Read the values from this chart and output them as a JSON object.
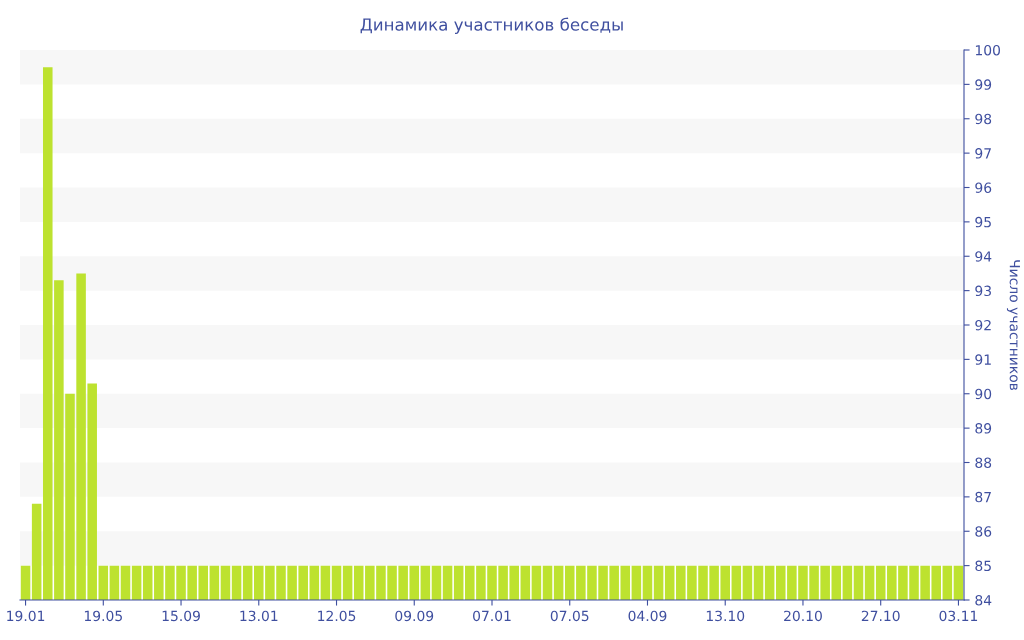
{
  "chart_data": {
    "type": "bar",
    "title": "Динамика участников беседы",
    "ylabel": "Число участников",
    "categories": [
      "19.01",
      null,
      null,
      null,
      null,
      null,
      null,
      "19.05",
      null,
      null,
      null,
      null,
      null,
      null,
      "15.09",
      null,
      null,
      null,
      null,
      null,
      null,
      "13.01",
      null,
      null,
      null,
      null,
      null,
      null,
      "12.05",
      null,
      null,
      null,
      null,
      null,
      null,
      "09.09",
      null,
      null,
      null,
      null,
      null,
      null,
      "07.01",
      null,
      null,
      null,
      null,
      null,
      null,
      "07.05",
      null,
      null,
      null,
      null,
      null,
      null,
      "04.09",
      null,
      null,
      null,
      null,
      null,
      null,
      "13.10",
      null,
      null,
      null,
      null,
      null,
      null,
      "20.10",
      null,
      null,
      null,
      null,
      null,
      null,
      "27.10",
      null,
      null,
      null,
      null,
      null,
      null,
      "03.11"
    ],
    "values": [
      85,
      86.8,
      99.5,
      93.3,
      90.0,
      93.5,
      90.3,
      85,
      85,
      85,
      85,
      85,
      85,
      85,
      85,
      85,
      85,
      85,
      85,
      85,
      85,
      85,
      85,
      85,
      85,
      85,
      85,
      85,
      85,
      85,
      85,
      85,
      85,
      85,
      85,
      85,
      85,
      85,
      85,
      85,
      85,
      85,
      85,
      85,
      85,
      85,
      85,
      85,
      85,
      85,
      85,
      85,
      85,
      85,
      85,
      85,
      85,
      85,
      85,
      85,
      85,
      85,
      85,
      85,
      85,
      85,
      85,
      85,
      85,
      85,
      85,
      85,
      85,
      85,
      85,
      85,
      85,
      85,
      85,
      85,
      85,
      85,
      85,
      85,
      85
    ],
    "color": "#bde22f",
    "ylim": [
      84,
      100
    ],
    "yticks": [
      84,
      85,
      86,
      87,
      88,
      89,
      90,
      91,
      92,
      93,
      94,
      95,
      96,
      97,
      98,
      99,
      100
    ],
    "bands": [
      {
        "axis": "y",
        "from": 85,
        "to": 86,
        "color": "#f7f7f7"
      },
      {
        "axis": "y",
        "from": 87,
        "to": 88,
        "color": "#f7f7f7"
      },
      {
        "axis": "y",
        "from": 89,
        "to": 90,
        "color": "#f7f7f7"
      },
      {
        "axis": "y",
        "from": 91,
        "to": 92,
        "color": "#f7f7f7"
      },
      {
        "axis": "y",
        "from": 93,
        "to": 94,
        "color": "#f7f7f7"
      },
      {
        "axis": "y",
        "from": 95,
        "to": 96,
        "color": "#f7f7f7"
      },
      {
        "axis": "y",
        "from": 97,
        "to": 98,
        "color": "#f7f7f7"
      },
      {
        "axis": "y",
        "from": 99,
        "to": 100,
        "color": "#f7f7f7"
      }
    ]
  }
}
